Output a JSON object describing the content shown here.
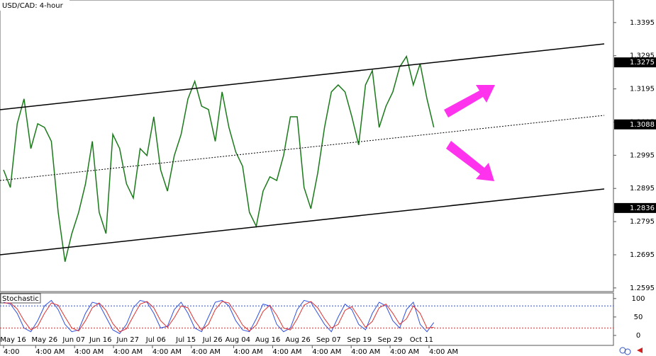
{
  "chart_data": {
    "type": "line",
    "title": "USD/CAD: 4-hour",
    "color": "#1a7a1a",
    "values": [
      1.2951,
      1.2898,
      1.309,
      1.3165,
      1.3015,
      1.309,
      1.3079,
      1.3037,
      1.2823,
      1.2674,
      1.2759,
      1.2823,
      1.2909,
      1.3037,
      1.2823,
      1.2759,
      1.3058,
      1.3015,
      1.2909,
      1.2866,
      1.3015,
      1.2994,
      1.3111,
      1.2951,
      1.2887,
      1.2994,
      1.3058,
      1.3165,
      1.3218,
      1.3143,
      1.3133,
      1.3037,
      1.3186,
      1.3079,
      1.3005,
      1.2962,
      1.2823,
      1.2781,
      1.2887,
      1.293,
      1.2919,
      1.2994,
      1.3111,
      1.3111,
      1.2898,
      1.2834,
      1.2941,
      1.3079,
      1.3186,
      1.3207,
      1.3186,
      1.3111,
      1.3026,
      1.3207,
      1.325,
      1.3079,
      1.3143,
      1.3186,
      1.3261,
      1.3293,
      1.3207,
      1.3271,
      1.3165,
      1.3079
    ],
    "ylim": [
      1.2584,
      1.3463
    ],
    "yticks": [
      1.3395,
      1.3295,
      1.3195,
      1.3095,
      1.2995,
      1.2895,
      1.2795,
      1.2695,
      1.2595
    ],
    "price_tags": [
      {
        "value": 1.3275,
        "label": "1.3275"
      },
      {
        "value": 1.3088,
        "label": "1.3088"
      },
      {
        "value": 1.2836,
        "label": "1.2836"
      }
    ],
    "xticks": [
      {
        "value": 1.4,
        "label": "May 16"
      },
      {
        "value": 6,
        "label": "May 26"
      },
      {
        "value": 10.3,
        "label": "Jun 07"
      },
      {
        "value": 14.2,
        "label": "Jun 16"
      },
      {
        "value": 18.2,
        "label": "Jun 27"
      },
      {
        "value": 22.3,
        "label": "Jul 06"
      },
      {
        "value": 26.7,
        "label": "Jul 15"
      },
      {
        "value": 30.6,
        "label": "Jul 26"
      },
      {
        "value": 34.3,
        "label": "Aug 04"
      },
      {
        "value": 38.7,
        "label": "Aug 16"
      },
      {
        "value": 43.1,
        "label": "Aug 26"
      },
      {
        "value": 47.6,
        "label": "Sep 07"
      },
      {
        "value": 52.1,
        "label": "Sep 19"
      },
      {
        "value": 56.6,
        "label": "Sep 29"
      },
      {
        "value": 61.2,
        "label": "Oct 11"
      }
    ],
    "time_labels": [
      {
        "value": 0,
        "label": "4:00"
      },
      {
        "value": 4.7,
        "label": "4:00 AM"
      },
      {
        "value": 10.4,
        "label": "4:00 AM"
      },
      {
        "value": 16.1,
        "label": "4:00 AM"
      },
      {
        "value": 21.8,
        "label": "4:00 AM"
      },
      {
        "value": 27.5,
        "label": "4:00 AM"
      },
      {
        "value": 33.7,
        "label": "4:00 AM"
      },
      {
        "value": 39.4,
        "label": "4:00 AM"
      },
      {
        "value": 45.2,
        "label": "4:00 AM"
      },
      {
        "value": 50.9,
        "label": "4:00 AM"
      },
      {
        "value": 56.6,
        "label": "4:00 AM"
      },
      {
        "value": 62.3,
        "label": "4:00 AM"
      }
    ],
    "indicator": {
      "title": "Stochastic",
      "ylim": [
        -27,
        115
      ],
      "yticks": [
        100,
        50,
        0
      ],
      "levels": [
        80,
        20
      ],
      "series": [
        {
          "name": "Main",
          "color": "#3050e0",
          "values": [
            90,
            85,
            60,
            20,
            10,
            40,
            80,
            95,
            70,
            30,
            10,
            15,
            60,
            90,
            85,
            50,
            15,
            5,
            30,
            75,
            95,
            90,
            60,
            20,
            25,
            70,
            90,
            60,
            20,
            10,
            50,
            90,
            95,
            80,
            40,
            15,
            10,
            45,
            85,
            80,
            30,
            10,
            20,
            70,
            95,
            90,
            60,
            30,
            10,
            50,
            85,
            70,
            30,
            15,
            60,
            90,
            80,
            40,
            20,
            70,
            90,
            30,
            10,
            35
          ]
        },
        {
          "name": "Signal",
          "color": "#e03030",
          "values": [
            88,
            88,
            72,
            40,
            15,
            25,
            60,
            88,
            82,
            50,
            20,
            12,
            40,
            75,
            88,
            68,
            32,
            10,
            18,
            52,
            85,
            92,
            75,
            40,
            22,
            48,
            80,
            75,
            40,
            15,
            30,
            70,
            92,
            88,
            60,
            28,
            12,
            28,
            65,
            82,
            55,
            20,
            15,
            45,
            82,
            92,
            75,
            45,
            20,
            30,
            68,
            78,
            50,
            22,
            38,
            75,
            85,
            60,
            30,
            45,
            80,
            60,
            20,
            22
          ]
        }
      ]
    }
  }
}
